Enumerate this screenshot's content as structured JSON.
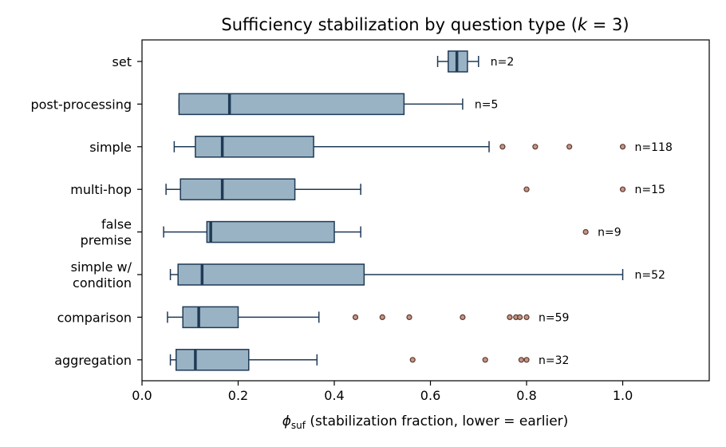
{
  "chart_data": {
    "type": "box",
    "title": "Sufficiency stabilization by question type (k = 3)",
    "xlabel": "ϕsuf  (stabilization fraction,  lower = earlier)",
    "xlim": [
      0.0,
      1.18
    ],
    "xticks": [
      "0.0",
      "0.2",
      "0.4",
      "0.6",
      "0.8",
      "1.0"
    ],
    "grid": false,
    "colors": {
      "box_fill": "#9ab3c4",
      "box_edge": "#1f3a56",
      "flier_fill": "#c08a78",
      "flier_edge": "#5a3a30"
    },
    "categories": [
      {
        "label_lines": [
          "set"
        ],
        "whisker_low": 0.615,
        "q1": 0.637,
        "median": 0.655,
        "q3": 0.677,
        "whisker_high": 0.7,
        "outliers": [],
        "n_label": "n=2"
      },
      {
        "label_lines": [
          "post-processing"
        ],
        "whisker_low": 0.077,
        "q1": 0.077,
        "median": 0.182,
        "q3": 0.545,
        "whisker_high": 0.667,
        "outliers": [],
        "n_label": "n=5"
      },
      {
        "label_lines": [
          "simple"
        ],
        "whisker_low": 0.067,
        "q1": 0.111,
        "median": 0.167,
        "q3": 0.357,
        "whisker_high": 0.722,
        "outliers": [
          0.75,
          0.818,
          0.889,
          1.0
        ],
        "n_label": "n=118"
      },
      {
        "label_lines": [
          "multi-hop"
        ],
        "whisker_low": 0.05,
        "q1": 0.08,
        "median": 0.167,
        "q3": 0.318,
        "whisker_high": 0.455,
        "outliers": [
          0.8,
          1.0
        ],
        "n_label": "n=15"
      },
      {
        "label_lines": [
          "false",
          "premise"
        ],
        "whisker_low": 0.045,
        "q1": 0.135,
        "median": 0.143,
        "q3": 0.4,
        "whisker_high": 0.455,
        "outliers": [
          0.923
        ],
        "n_label": "n=9"
      },
      {
        "label_lines": [
          "simple w/",
          "condition"
        ],
        "whisker_low": 0.059,
        "q1": 0.075,
        "median": 0.125,
        "q3": 0.462,
        "whisker_high": 1.0,
        "outliers": [],
        "n_label": "n=52"
      },
      {
        "label_lines": [
          "comparison"
        ],
        "whisker_low": 0.053,
        "q1": 0.085,
        "median": 0.118,
        "q3": 0.2,
        "whisker_high": 0.368,
        "outliers": [
          0.444,
          0.5,
          0.556,
          0.667,
          0.765,
          0.778,
          0.786,
          0.8
        ],
        "n_label": "n=59"
      },
      {
        "label_lines": [
          "aggregation"
        ],
        "whisker_low": 0.059,
        "q1": 0.071,
        "median": 0.111,
        "q3": 0.222,
        "whisker_high": 0.364,
        "outliers": [
          0.563,
          0.714,
          0.789,
          0.8
        ],
        "n_label": "n=32"
      }
    ]
  }
}
